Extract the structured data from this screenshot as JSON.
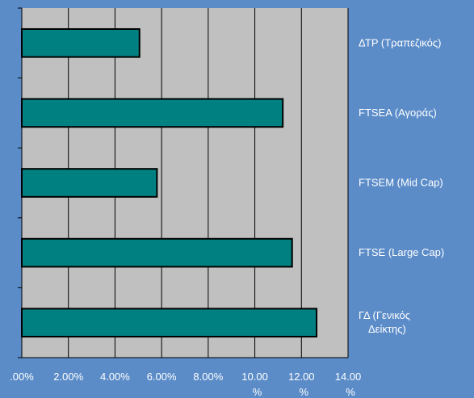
{
  "chart_data": {
    "type": "bar",
    "orientation": "horizontal",
    "categories": [
      "ΔΤΡ (Τραπεζικός)",
      "FTSEA (Αγοράς)",
      "FTSEM (Mid Cap)",
      "FTSE (Large Cap)",
      "ΓΔ (Γενικός Δείκτης)"
    ],
    "category_lines": [
      [
        "ΔΤΡ (Τραπεζικός)"
      ],
      [
        "FTSEA (Αγοράς)"
      ],
      [
        "FTSEM (Mid Cap)"
      ],
      [
        "FTSE (Large Cap)"
      ],
      [
        "ΓΔ (Γενικός",
        "Δείκτης)"
      ]
    ],
    "values": [
      5.05,
      11.2,
      5.8,
      11.6,
      12.65
    ],
    "xlim": [
      0,
      14
    ],
    "x_ticks": [
      0,
      2,
      4,
      6,
      8,
      10,
      12,
      14
    ],
    "x_tick_labels": [
      ".00%",
      "2.00%",
      "4.00%",
      "6.00%",
      "8.00%",
      "10.00",
      "12.00",
      "14.00"
    ],
    "x_tick_sublabels": [
      "",
      "",
      "",
      "",
      "",
      "%",
      "%",
      "%"
    ],
    "grid": true,
    "legend": "none",
    "colors": {
      "background": "#5b8cc8",
      "plot_area": "#c0c0c0",
      "bar_fill": "#008080",
      "bar_stroke": "#000000",
      "text": "#ffffff"
    }
  }
}
